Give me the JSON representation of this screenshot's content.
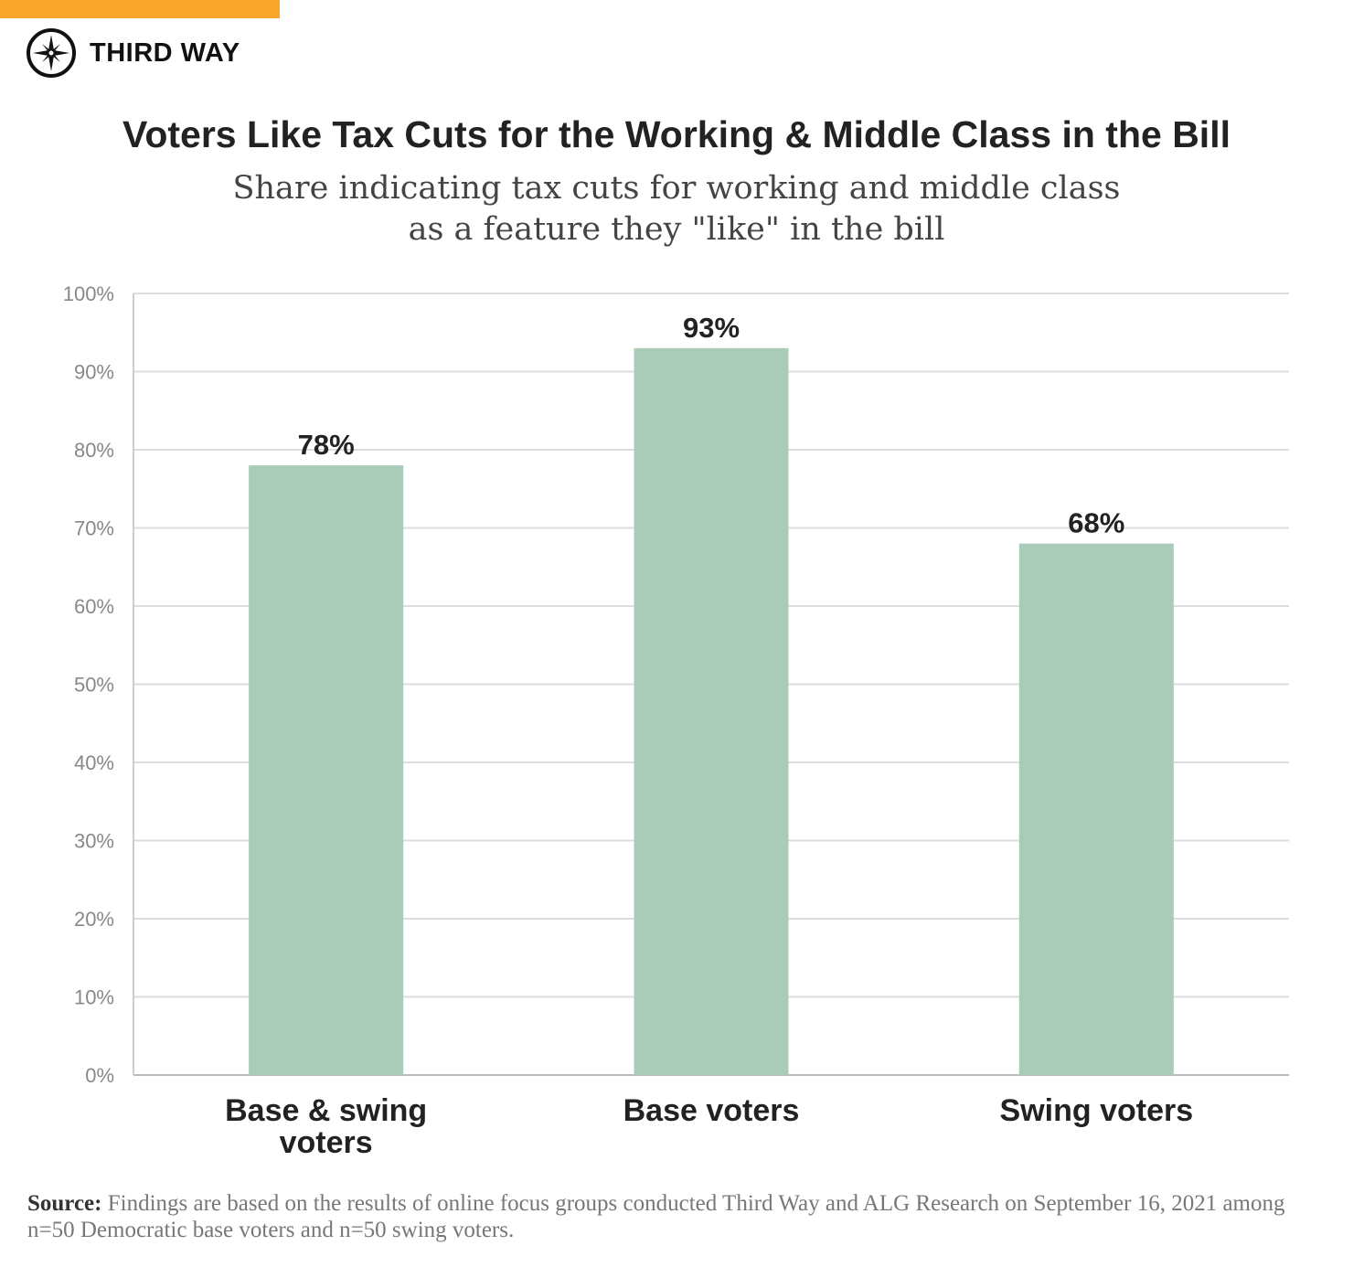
{
  "brand": {
    "name": "THIRD WAY",
    "accent_color": "#f9a42b"
  },
  "chart_data": {
    "type": "bar",
    "title": "Voters Like Tax Cuts for the Working & Middle Class in the Bill",
    "subtitle_lines": [
      "Share indicating tax cuts for working and middle class",
      "as a feature they \"like\" in the bill"
    ],
    "categories": [
      [
        "Base & swing",
        "voters"
      ],
      [
        "Base voters"
      ],
      [
        "Swing voters"
      ]
    ],
    "values": [
      78,
      93,
      68
    ],
    "data_labels": [
      "78%",
      "93%",
      "68%"
    ],
    "ylim": [
      0,
      100
    ],
    "yticks": [
      "0%",
      "10%",
      "20%",
      "30%",
      "40%",
      "50%",
      "60%",
      "70%",
      "80%",
      "90%",
      "100%"
    ],
    "grid": true,
    "bar_color": "#a8ccb8",
    "xlabel": "",
    "ylabel": ""
  },
  "source": {
    "label": "Source:",
    "text": " Findings are based on the results of online focus groups conducted Third Way and ALG Research on September 16, 2021 among n=50 Democratic base voters and n=50 swing voters."
  }
}
